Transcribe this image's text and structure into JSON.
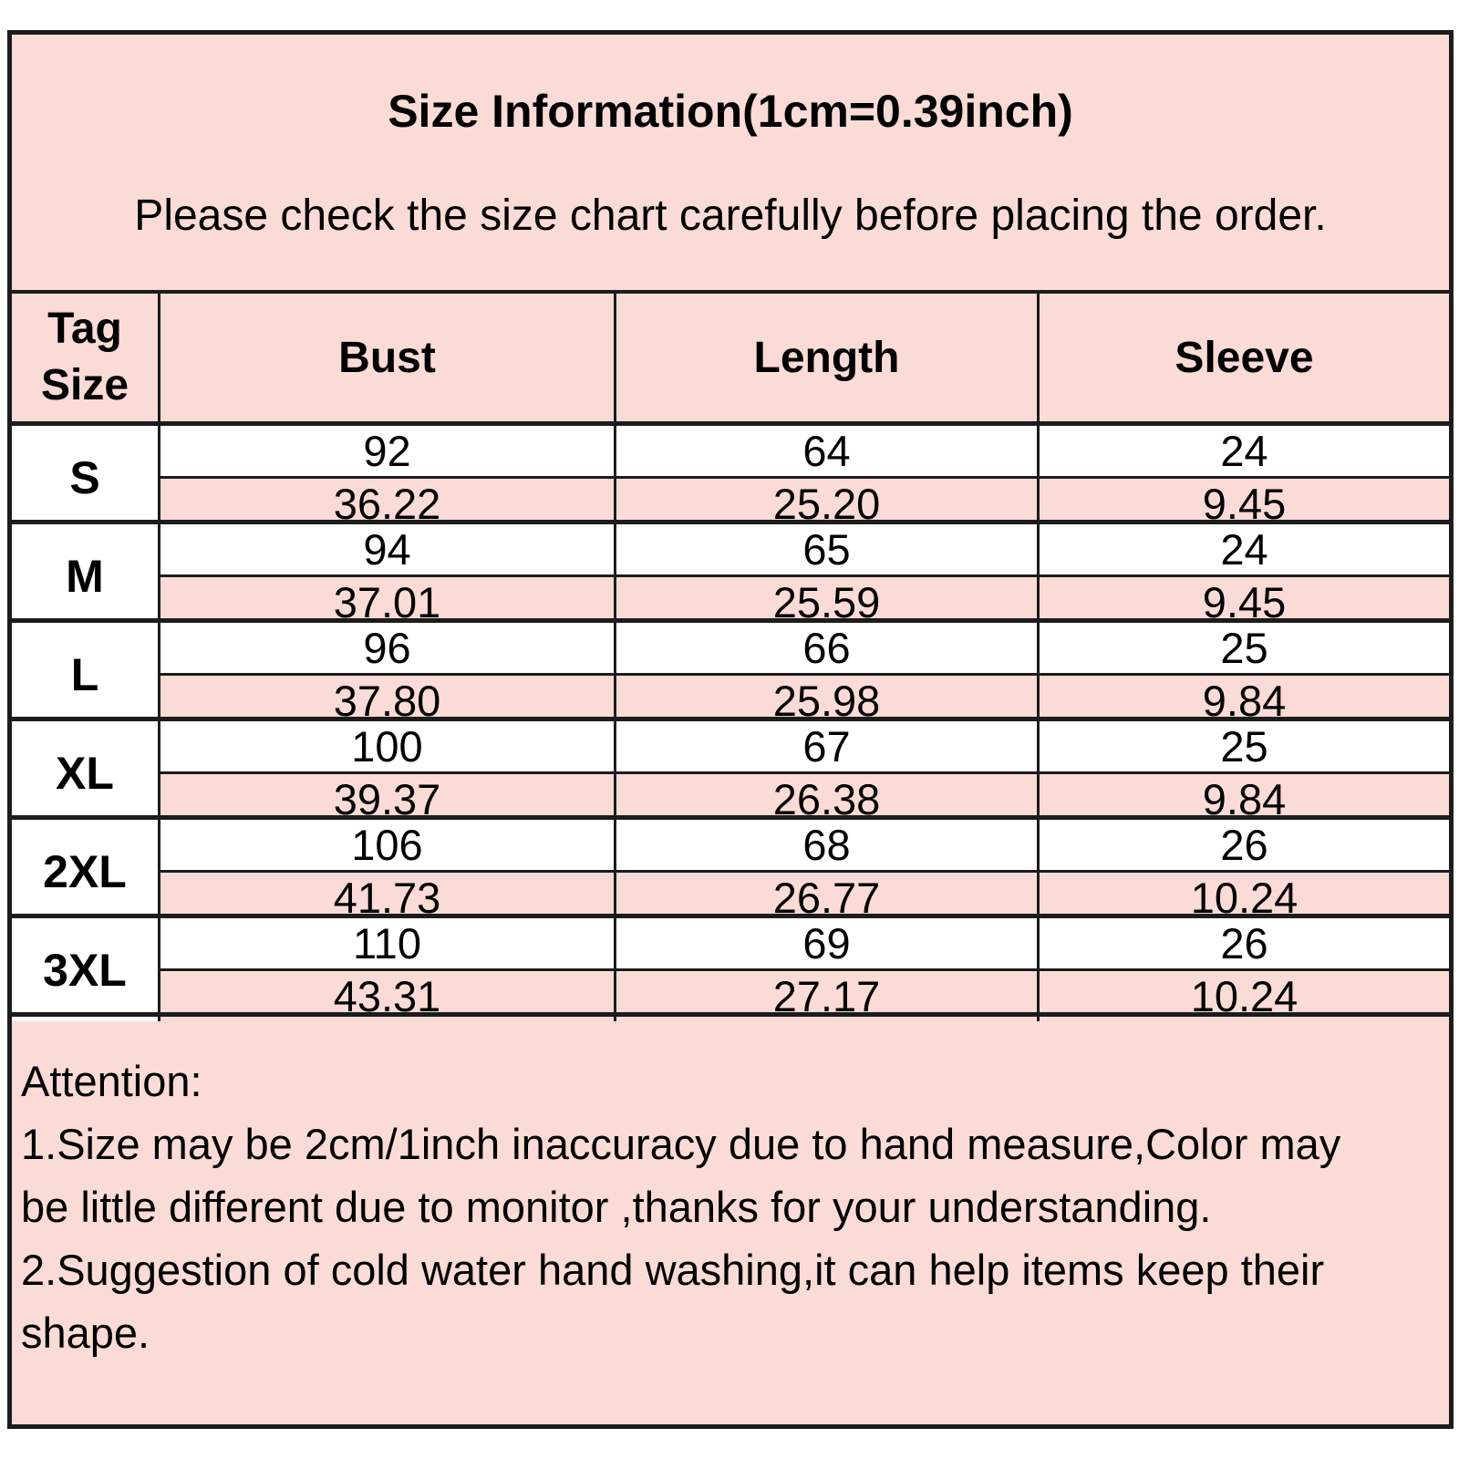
{
  "header": {
    "title": "Size Information(1cm=0.39inch)",
    "subtitle": "Please check the size chart carefully before placing the order."
  },
  "table": {
    "tag_header": {
      "line1": "Tag",
      "line2": "Size"
    },
    "columns": [
      "Bust",
      "Length",
      "Sleeve"
    ],
    "units": [
      "cm",
      "inch"
    ],
    "rows": [
      {
        "size": "S",
        "cm": [
          "92",
          "64",
          "24"
        ],
        "inch": [
          "36.22",
          "25.20",
          "9.45"
        ]
      },
      {
        "size": "M",
        "cm": [
          "94",
          "65",
          "24"
        ],
        "inch": [
          "37.01",
          "25.59",
          "9.45"
        ]
      },
      {
        "size": "L",
        "cm": [
          "96",
          "66",
          "25"
        ],
        "inch": [
          "37.80",
          "25.98",
          "9.84"
        ]
      },
      {
        "size": "XL",
        "cm": [
          "100",
          "67",
          "25"
        ],
        "inch": [
          "39.37",
          "26.38",
          "9.84"
        ]
      },
      {
        "size": "2XL",
        "cm": [
          "106",
          "68",
          "26"
        ],
        "inch": [
          "41.73",
          "26.77",
          "10.24"
        ]
      },
      {
        "size": "3XL",
        "cm": [
          "110",
          "69",
          "26"
        ],
        "inch": [
          "43.31",
          "27.17",
          "10.24"
        ]
      }
    ]
  },
  "attention": {
    "heading": "Attention:",
    "note1": "1.Size may be 2cm/1inch inaccuracy due to hand measure,Color may be little different due to monitor ,thanks for your understanding.",
    "note2": "2.Suggestion of cold water hand washing,it can help items keep their shape."
  },
  "colors": {
    "pink": "#fbdbd6",
    "border": "#1c1c1c",
    "row_alt": "#ffffff",
    "text": "#000000"
  }
}
